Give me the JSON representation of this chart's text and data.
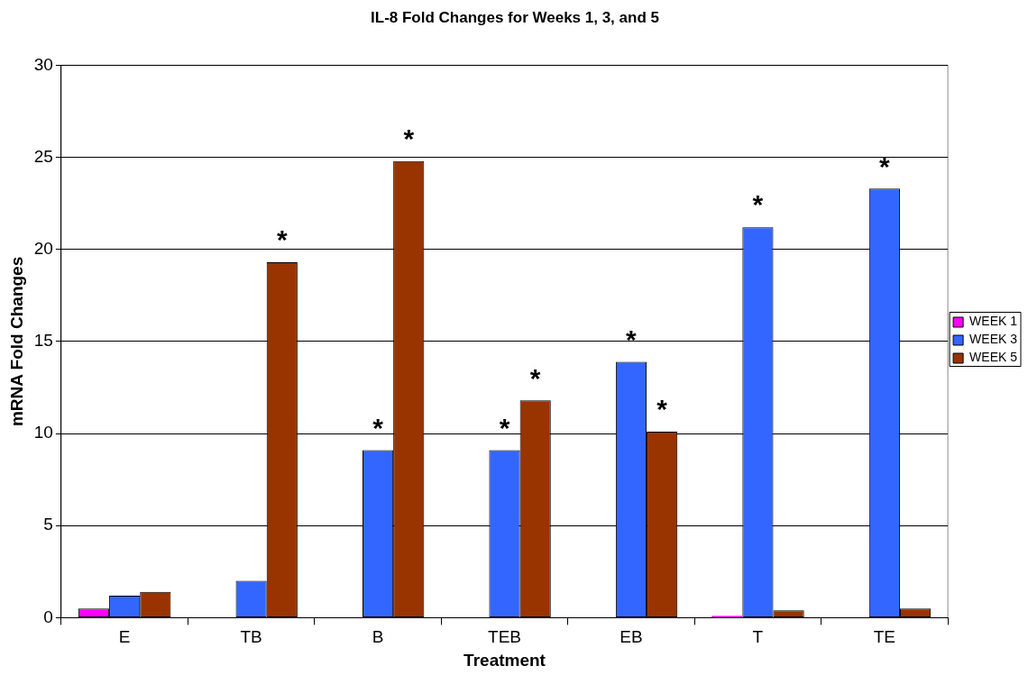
{
  "chart_data": {
    "type": "bar",
    "title": "IL-8 Fold Changes for Weeks 1, 3, and 5",
    "xlabel": "Treatment",
    "ylabel": "mRNA Fold Changes",
    "categories": [
      "E",
      "TB",
      "B",
      "TEB",
      "EB",
      "T",
      "TE"
    ],
    "series": [
      {
        "name": "WEEK 1",
        "color": "#ff00ff",
        "values": [
          0.5,
          0,
          0,
          0,
          0,
          0.1,
          0
        ]
      },
      {
        "name": "WEEK 3",
        "color": "#3366ff",
        "values": [
          1.2,
          2.0,
          9.1,
          9.1,
          13.9,
          21.2,
          23.3
        ],
        "value_labels": [
          null,
          null,
          "*",
          "*",
          "*",
          "*",
          "*"
        ]
      },
      {
        "name": "WEEK 5",
        "color": "#993300",
        "values": [
          1.4,
          19.3,
          24.8,
          11.8,
          10.1,
          0.4,
          0.5
        ],
        "value_labels": [
          null,
          "*",
          "*",
          "*",
          "*",
          null,
          null
        ]
      }
    ],
    "ylim": [
      0,
      30
    ],
    "yticks": [
      0,
      5,
      10,
      15,
      20,
      25,
      30
    ],
    "grid": "y",
    "legend": "right"
  }
}
